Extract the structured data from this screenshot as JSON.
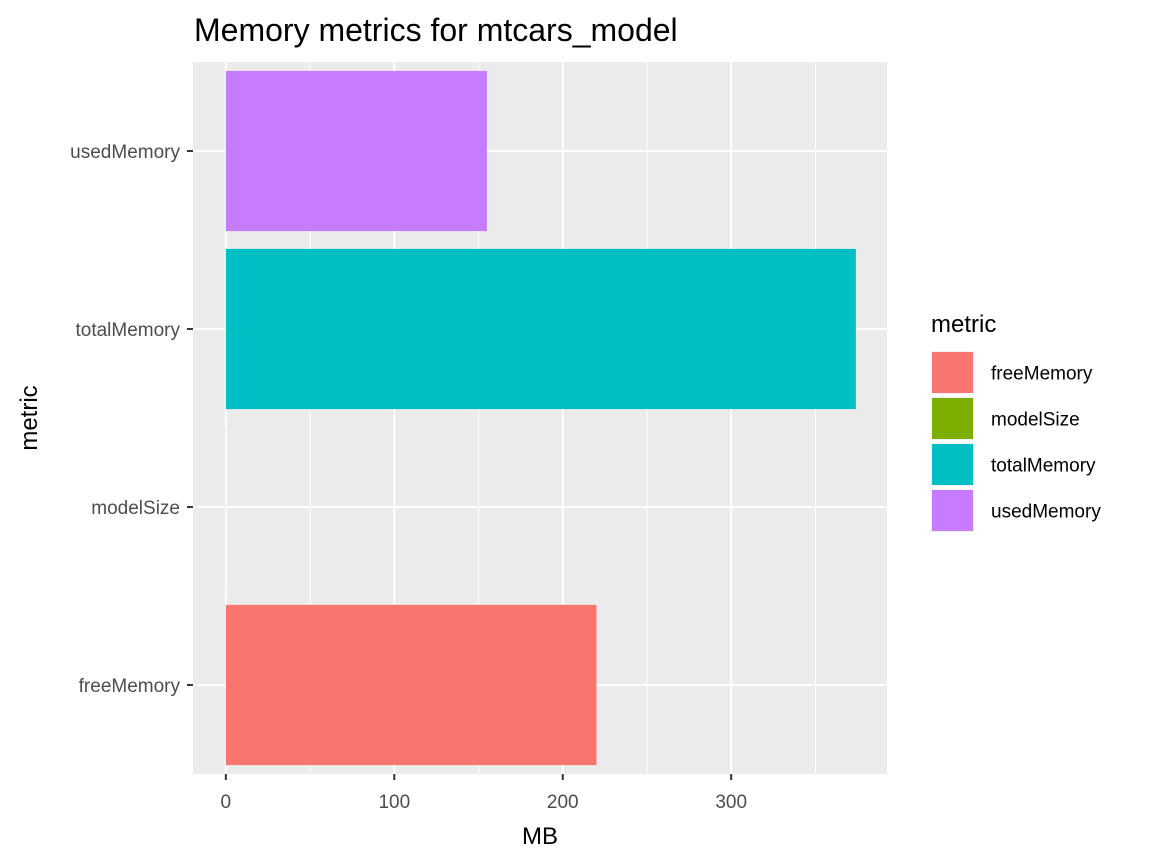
{
  "chart_data": {
    "type": "bar",
    "orientation": "horizontal",
    "title": "Memory metrics for mtcars_model",
    "xlabel": "MB",
    "ylabel": "metric",
    "categories": [
      "freeMemory",
      "modelSize",
      "totalMemory",
      "usedMemory"
    ],
    "values": [
      220,
      0.05,
      374,
      155
    ],
    "colors": [
      "#F8766D",
      "#7CAE00",
      "#00BFC4",
      "#C77CFF"
    ],
    "xlim": [
      -19.5,
      392.5
    ],
    "x_ticks": [
      0,
      100,
      200,
      300
    ],
    "grid": true,
    "legend": {
      "title": "metric",
      "position": "right",
      "items": [
        "freeMemory",
        "modelSize",
        "totalMemory",
        "usedMemory"
      ]
    }
  }
}
